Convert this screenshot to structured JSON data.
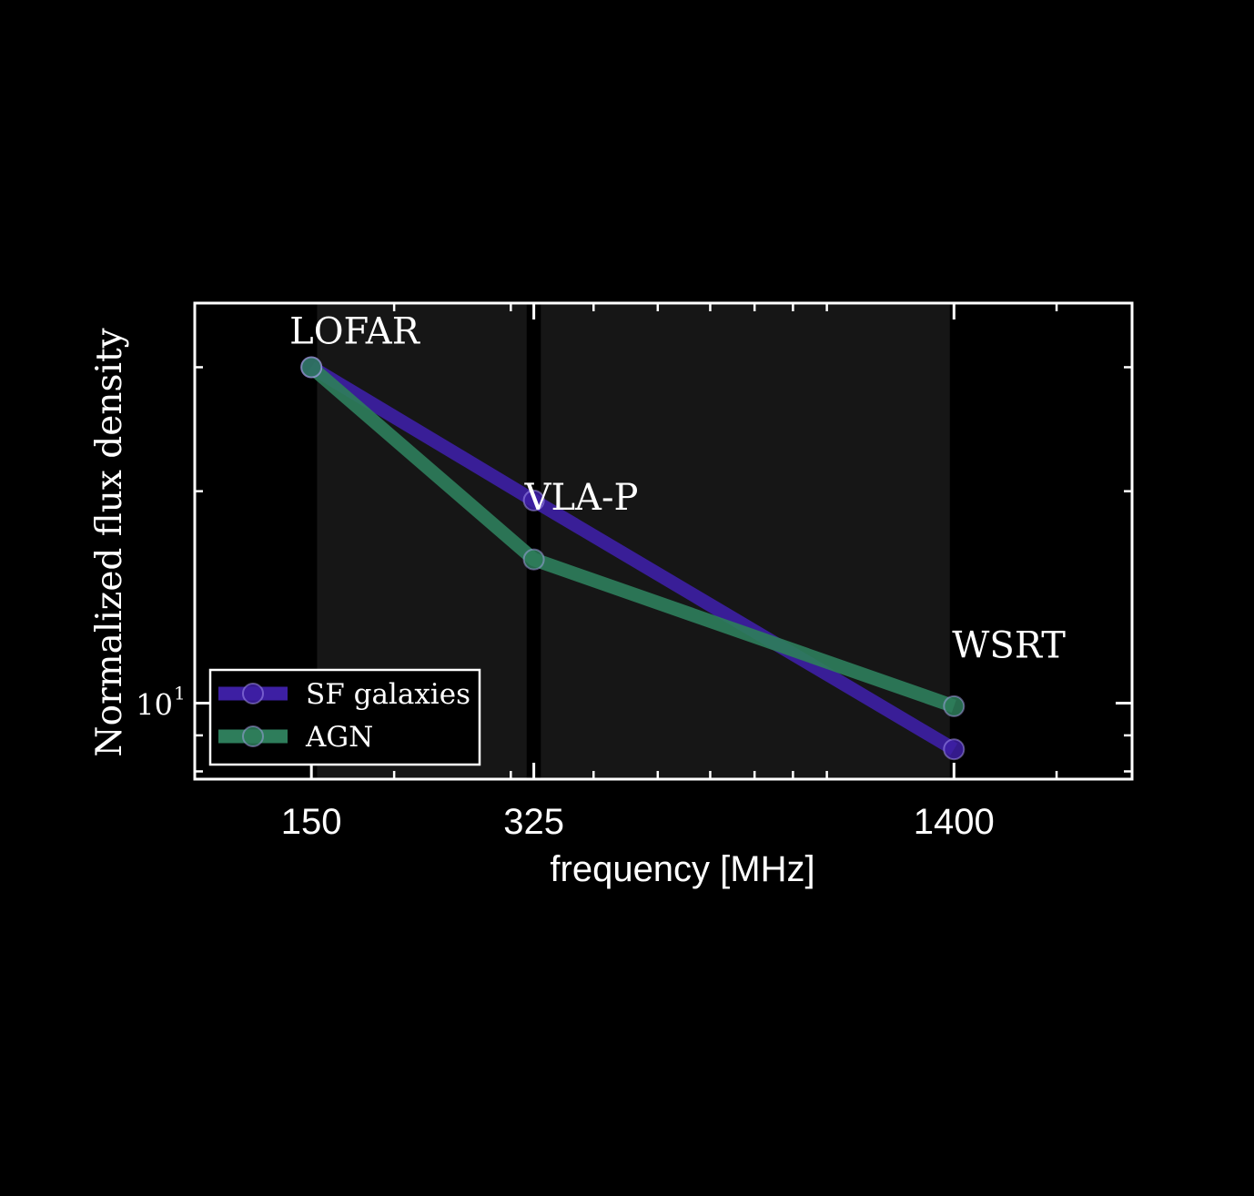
{
  "chart_data": {
    "type": "line",
    "x_scale": "log",
    "y_scale": "log",
    "xlabel": "frequency [MHz]",
    "ylabel": "Normalized flux density",
    "x_ticks": [
      150,
      325,
      1400
    ],
    "x_tick_labels": [
      "150",
      "325",
      "1400"
    ],
    "y_tick_label": "10",
    "y_tick_label_exponent": "1",
    "y_tick_value": 10,
    "xlim": [
      100,
      2600
    ],
    "ylim": [
      7.8,
      37
    ],
    "grid": false,
    "legend_position": "lower-left",
    "bands": [
      {
        "x_from": 153,
        "x_to": 317,
        "color": "#161616"
      },
      {
        "x_from": 333,
        "x_to": 1380,
        "color": "#161616"
      }
    ],
    "vertical_lines": [
      325,
      1400
    ],
    "annotations": [
      {
        "text": "LOFAR",
        "x": 150,
        "y": 30
      },
      {
        "text": "VLA-P",
        "x": 325,
        "y": 19.4
      },
      {
        "text": "WSRT",
        "x": 1400,
        "y": 11.6
      }
    ],
    "series": [
      {
        "name": "SF galaxies",
        "color": "#3d1fa3",
        "x": [
          150,
          325,
          1400
        ],
        "y": [
          30,
          19.4,
          8.6
        ]
      },
      {
        "name": "AGN",
        "color": "#2e7d5b",
        "x": [
          150,
          325,
          1400
        ],
        "y": [
          30,
          16,
          9.9
        ]
      }
    ]
  }
}
